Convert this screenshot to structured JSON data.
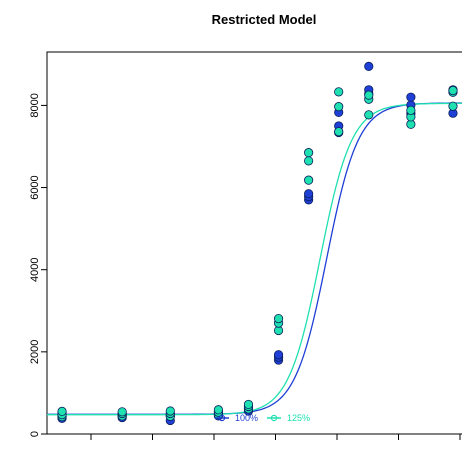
{
  "chart_data": {
    "type": "scatter",
    "title": "Restricted Model",
    "xlabel": "",
    "ylabel": "",
    "x_tick_count": 7,
    "yticks": [
      0,
      2000,
      4000,
      6000,
      8000
    ],
    "ylim": [
      0,
      9300
    ],
    "xlim": [
      -4.45,
      2.45
    ],
    "grid": false,
    "legend": {
      "placement": "bottom-center",
      "entries": [
        {
          "label": "100%",
          "color": "#1f3fd6"
        },
        {
          "label": "125%",
          "color": "#1fe0b0"
        }
      ]
    },
    "series": [
      {
        "name": "100%",
        "color": "#1f3fd6",
        "curve": {
          "bottom": 480,
          "top": 8060,
          "ec50": 0.2,
          "hill": 3.8
        },
        "points": [
          [
            -4.2,
            380
          ],
          [
            -4.2,
            430
          ],
          [
            -4.2,
            480
          ],
          [
            -4.2,
            520
          ],
          [
            -3.2,
            400
          ],
          [
            -3.2,
            450
          ],
          [
            -3.2,
            490
          ],
          [
            -2.4,
            330
          ],
          [
            -2.4,
            440
          ],
          [
            -2.4,
            500
          ],
          [
            -1.6,
            440
          ],
          [
            -1.6,
            490
          ],
          [
            -1.6,
            540
          ],
          [
            -1.1,
            560
          ],
          [
            -1.1,
            620
          ],
          [
            -1.1,
            680
          ],
          [
            -0.6,
            1800
          ],
          [
            -0.6,
            1870
          ],
          [
            -0.6,
            1930
          ],
          [
            -0.1,
            5700
          ],
          [
            -0.1,
            5780
          ],
          [
            -0.1,
            5850
          ],
          [
            0.4,
            7340
          ],
          [
            0.4,
            7500
          ],
          [
            0.4,
            7830
          ],
          [
            0.9,
            8290
          ],
          [
            0.9,
            8380
          ],
          [
            0.9,
            8950
          ],
          [
            1.6,
            7800
          ],
          [
            1.6,
            8010
          ],
          [
            1.6,
            8200
          ],
          [
            2.3,
            7810
          ],
          [
            2.3,
            8340
          ],
          [
            2.3,
            8380
          ]
        ]
      },
      {
        "name": "125%",
        "color": "#1fe0b0",
        "curve": {
          "bottom": 470,
          "top": 8050,
          "ec50": 0.09,
          "hill": 3.8
        },
        "points": [
          [
            -4.2,
            420
          ],
          [
            -4.2,
            470
          ],
          [
            -4.2,
            550
          ],
          [
            -3.2,
            440
          ],
          [
            -3.2,
            500
          ],
          [
            -3.2,
            540
          ],
          [
            -2.4,
            430
          ],
          [
            -2.4,
            500
          ],
          [
            -2.4,
            560
          ],
          [
            -1.6,
            470
          ],
          [
            -1.6,
            530
          ],
          [
            -1.6,
            590
          ],
          [
            -1.1,
            610
          ],
          [
            -1.1,
            670
          ],
          [
            -1.1,
            720
          ],
          [
            -0.6,
            2520
          ],
          [
            -0.6,
            2700
          ],
          [
            -0.6,
            2810
          ],
          [
            -0.1,
            6180
          ],
          [
            -0.1,
            6650
          ],
          [
            -0.1,
            6850
          ],
          [
            0.4,
            7360
          ],
          [
            0.4,
            7970
          ],
          [
            0.4,
            8330
          ],
          [
            0.9,
            7770
          ],
          [
            0.9,
            8150
          ],
          [
            0.9,
            8250
          ],
          [
            1.6,
            7540
          ],
          [
            1.6,
            7720
          ],
          [
            1.6,
            7880
          ],
          [
            2.3,
            7980
          ],
          [
            2.3,
            8320
          ],
          [
            2.3,
            8360
          ]
        ]
      }
    ]
  }
}
